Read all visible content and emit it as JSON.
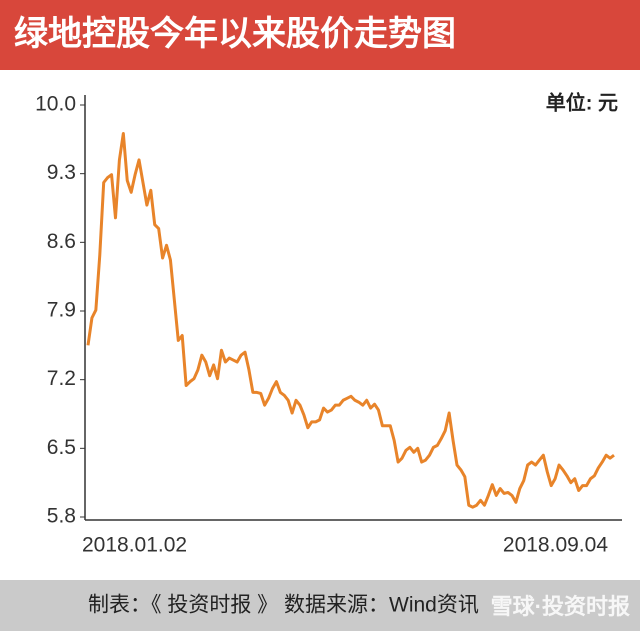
{
  "chart_data": {
    "type": "line",
    "title": "绿地控股今年以来股价走势图",
    "unit_label": "单位: 元",
    "categories": [
      "2018.01.02",
      null,
      null,
      null,
      null,
      null,
      null,
      null,
      null,
      null,
      null,
      null,
      null,
      null,
      null,
      null,
      null,
      null,
      null,
      null,
      null,
      null,
      null,
      null,
      null,
      null,
      null,
      null,
      null,
      null,
      null,
      null,
      null,
      null,
      null,
      null,
      null,
      null,
      null,
      null,
      null,
      null,
      null,
      null,
      null,
      null,
      null,
      null,
      null,
      null,
      null,
      null,
      null,
      null,
      null,
      null,
      null,
      null,
      null,
      null,
      null,
      null,
      null,
      null,
      null,
      null,
      null,
      null,
      null,
      null,
      null,
      null,
      null,
      null,
      null,
      null,
      null,
      null,
      null,
      null,
      null,
      null,
      null,
      null,
      null,
      null,
      null,
      null,
      null,
      null,
      null,
      null,
      null,
      null,
      null,
      null,
      null,
      null,
      null,
      null,
      null,
      null,
      null,
      null,
      null,
      null,
      null,
      null,
      null,
      null,
      null,
      null,
      null,
      null,
      null,
      null,
      null,
      null,
      null,
      null,
      null,
      null,
      null,
      null,
      null,
      null,
      null,
      null,
      null,
      null,
      null,
      null,
      null,
      null,
      "2018.09.04"
    ],
    "values": [
      7.55,
      7.83,
      7.91,
      8.47,
      9.21,
      9.26,
      9.29,
      8.85,
      9.44,
      9.71,
      9.23,
      9.11,
      9.29,
      9.44,
      9.21,
      8.98,
      9.13,
      8.78,
      8.74,
      8.44,
      8.57,
      8.42,
      8.01,
      7.6,
      7.65,
      7.14,
      7.18,
      7.21,
      7.3,
      7.45,
      7.38,
      7.24,
      7.35,
      7.21,
      7.5,
      7.38,
      7.42,
      7.4,
      7.38,
      7.45,
      7.48,
      7.3,
      7.07,
      7.07,
      7.06,
      6.94,
      7.01,
      7.11,
      7.18,
      7.07,
      7.04,
      6.99,
      6.86,
      6.99,
      6.94,
      6.84,
      6.71,
      6.77,
      6.77,
      6.79,
      6.91,
      6.87,
      6.89,
      6.94,
      6.94,
      6.99,
      7.01,
      7.03,
      6.99,
      6.97,
      6.94,
      6.99,
      6.91,
      6.95,
      6.89,
      6.73,
      6.73,
      6.73,
      6.58,
      6.36,
      6.4,
      6.48,
      6.51,
      6.46,
      6.5,
      6.36,
      6.38,
      6.43,
      6.51,
      6.53,
      6.6,
      6.68,
      6.86,
      6.58,
      6.33,
      6.28,
      6.21,
      5.92,
      5.9,
      5.92,
      5.97,
      5.92,
      6.02,
      6.13,
      6.02,
      6.09,
      6.04,
      6.05,
      6.02,
      5.95,
      6.09,
      6.17,
      6.33,
      6.36,
      6.33,
      6.38,
      6.43,
      6.26,
      6.12,
      6.19,
      6.33,
      6.28,
      6.22,
      6.15,
      6.19,
      6.07,
      6.12,
      6.12,
      6.19,
      6.22,
      6.3,
      6.36,
      6.43,
      6.4,
      6.43
    ],
    "color": "#e8842a",
    "ylim": [
      5.8,
      10.0
    ],
    "yticks": [
      {
        "value": 10,
        "label": "10.0"
      },
      9.3,
      8.6,
      7.9,
      7.2,
      6.5,
      5.8
    ]
  },
  "footer": {
    "credit": "制表：《 投资时报 》  数据来源：Wind资讯",
    "watermark": "雪球·投资时报"
  }
}
